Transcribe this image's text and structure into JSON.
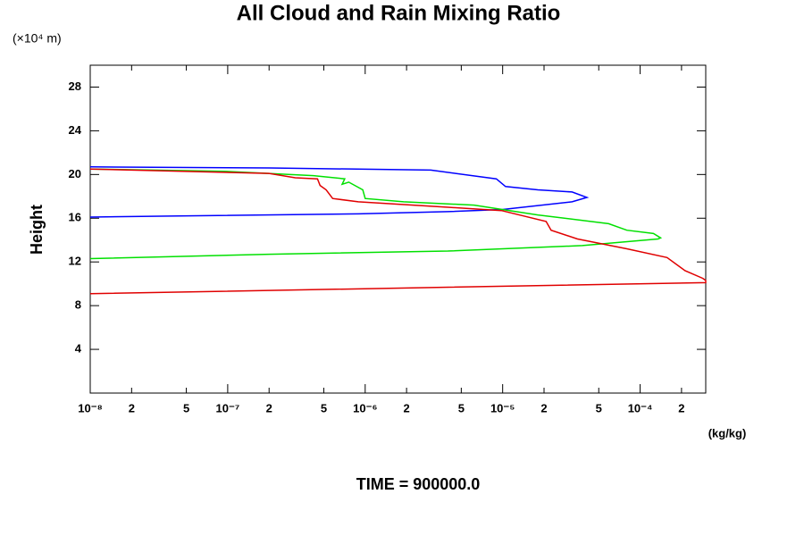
{
  "chart_data": {
    "type": "line",
    "title": "All Cloud and Rain Mixing Ratio",
    "y_unit": "(×10⁴ m)",
    "ylabel": "Height",
    "x_unit": "(kg/kg)",
    "footer": "TIME = 900000.0",
    "xscale": "log",
    "xlim": [
      1e-08,
      0.0003
    ],
    "ylim": [
      0,
      30
    ],
    "xticks": [
      {
        "value": 1e-08,
        "label": "10⁻⁸"
      },
      {
        "value": 2e-08,
        "label": "2"
      },
      {
        "value": 5e-08,
        "label": "5"
      },
      {
        "value": 1e-07,
        "label": "10⁻⁷"
      },
      {
        "value": 2e-07,
        "label": "2"
      },
      {
        "value": 5e-07,
        "label": "5"
      },
      {
        "value": 1e-06,
        "label": "10⁻⁶"
      },
      {
        "value": 2e-06,
        "label": "2"
      },
      {
        "value": 5e-06,
        "label": "5"
      },
      {
        "value": 1e-05,
        "label": "10⁻⁵"
      },
      {
        "value": 2e-05,
        "label": "2"
      },
      {
        "value": 5e-05,
        "label": "5"
      },
      {
        "value": 0.0001,
        "label": "10⁻⁴"
      },
      {
        "value": 0.0002,
        "label": "2"
      }
    ],
    "yticks": [
      4,
      8,
      12,
      16,
      20,
      24,
      28
    ],
    "series": [
      {
        "color": "#0000ff",
        "x": [
          1e-08,
          2e-07,
          3e-06,
          9e-06,
          1.05e-05,
          1.8e-05,
          3.2e-05,
          4.1e-05,
          3.2e-05,
          1e-05,
          4e-06,
          9e-07,
          4.4e-08,
          1e-08
        ],
        "values": [
          20.7,
          20.6,
          20.4,
          19.6,
          18.9,
          18.6,
          18.4,
          17.9,
          17.5,
          16.8,
          16.6,
          16.4,
          16.2,
          16.1
        ]
      },
      {
        "color": "#00e000",
        "x": [
          1e-08,
          9.4e-08,
          4.2e-07,
          7.1e-07,
          6.8e-07,
          7.6e-07,
          9.6e-07,
          1e-06,
          1.9e-06,
          6.2e-06,
          1.8e-05,
          5.9e-05,
          8e-05,
          0.000125,
          0.000141,
          0.000135,
          3.8e-05,
          4e-06,
          2e-07,
          1e-08
        ],
        "values": [
          20.5,
          20.3,
          19.9,
          19.6,
          19.1,
          19.3,
          18.6,
          17.8,
          17.5,
          17.2,
          16.3,
          15.5,
          14.9,
          14.6,
          14.2,
          14.1,
          13.5,
          13.0,
          12.7,
          12.3
        ]
      },
      {
        "color": "#e00000",
        "x": [
          1e-08,
          2e-07,
          3.1e-07,
          4.5e-07,
          4.7e-07,
          5.2e-07,
          5.8e-07,
          8.9e-07,
          4e-06,
          9.8e-06,
          2.07e-05,
          2.25e-05,
          3.5e-05,
          8e-05,
          0.000157,
          0.000212,
          0.000286,
          0.0003,
          0.0003,
          1e-08
        ],
        "values": [
          20.5,
          20.1,
          19.7,
          19.6,
          19.0,
          18.6,
          17.8,
          17.5,
          17.0,
          16.7,
          15.7,
          14.9,
          14.1,
          13.2,
          12.4,
          11.2,
          10.5,
          10.3,
          10.1,
          9.1
        ]
      }
    ]
  }
}
